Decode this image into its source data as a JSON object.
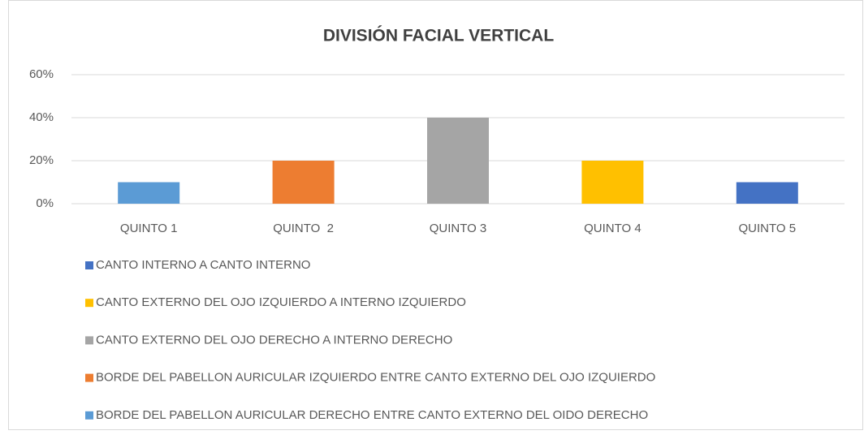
{
  "chart_data": {
    "type": "bar",
    "title": "DIVISIÓN FACIAL VERTICAL",
    "categories": [
      "QUINTO 1",
      "QUINTO  2",
      "QUINTO 3",
      "QUINTO 4",
      "QUINTO 5"
    ],
    "series": [
      {
        "name": "CANTO INTERNO A CANTO INTERNO",
        "color": "#4472c4",
        "values": [
          null,
          null,
          null,
          null,
          10
        ]
      },
      {
        "name": "CANTO EXTERNO DEL OJO IZQUIERDO A INTERNO IZQUIERDO",
        "color": "#ffc000",
        "values": [
          null,
          null,
          null,
          20,
          null
        ]
      },
      {
        "name": "CANTO EXTERNO DEL OJO DERECHO A INTERNO DERECHO",
        "color": "#a5a5a5",
        "values": [
          null,
          null,
          40,
          null,
          null
        ]
      },
      {
        "name": "BORDE DEL PABELLON AURICULAR IZQUIERDO ENTRE CANTO EXTERNO DEL OJO IZQUIERDO",
        "color": "#ed7d31",
        "values": [
          null,
          20,
          null,
          null,
          null
        ]
      },
      {
        "name": "BORDE DEL PABELLON AURICULAR DERECHO ENTRE CANTO EXTERNO DEL OIDO DERECHO",
        "color": "#5b9bd5",
        "values": [
          10,
          null,
          null,
          null,
          null
        ]
      }
    ],
    "ylim": [
      0,
      60
    ],
    "yticks": [
      {
        "value": 0,
        "label": "0%"
      },
      {
        "value": 20,
        "label": "20%"
      },
      {
        "value": 40,
        "label": "40%"
      },
      {
        "value": 60,
        "label": "60%"
      }
    ],
    "grid": true
  }
}
